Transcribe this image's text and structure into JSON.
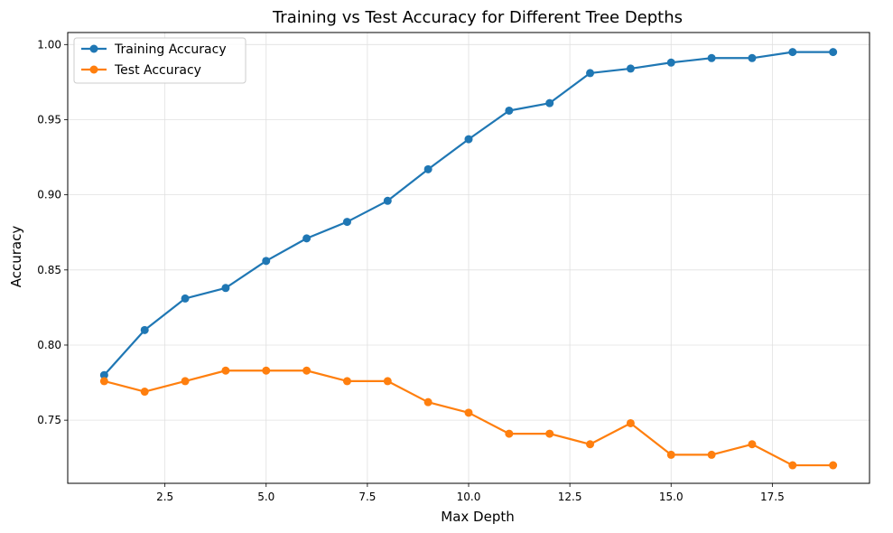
{
  "chart_data": {
    "type": "line",
    "title": "Training vs Test Accuracy for Different Tree Depths",
    "xlabel": "Max Depth",
    "ylabel": "Accuracy",
    "x": [
      1,
      2,
      3,
      4,
      5,
      6,
      7,
      8,
      9,
      10,
      11,
      12,
      13,
      14,
      15,
      16,
      17,
      18,
      19
    ],
    "xlim": [
      0.1,
      19.9
    ],
    "ylim": [
      0.708,
      1.008
    ],
    "xticks": [
      2.5,
      5.0,
      7.5,
      10.0,
      12.5,
      15.0,
      17.5
    ],
    "xtick_labels": [
      "2.5",
      "5.0",
      "7.5",
      "10.0",
      "12.5",
      "15.0",
      "17.5"
    ],
    "yticks": [
      0.75,
      0.8,
      0.85,
      0.9,
      0.95,
      1.0
    ],
    "ytick_labels": [
      "0.75",
      "0.80",
      "0.85",
      "0.90",
      "0.95",
      "1.00"
    ],
    "grid": true,
    "legend_position": "top-left",
    "series": [
      {
        "name": "Training Accuracy",
        "color": "#1f77b4",
        "values": [
          0.78,
          0.81,
          0.831,
          0.838,
          0.856,
          0.871,
          0.882,
          0.896,
          0.917,
          0.937,
          0.956,
          0.961,
          0.981,
          0.984,
          0.988,
          0.991,
          0.991,
          0.995,
          0.995
        ]
      },
      {
        "name": "Test Accuracy",
        "color": "#ff7f0e",
        "values": [
          0.776,
          0.769,
          0.776,
          0.783,
          0.783,
          0.783,
          0.776,
          0.776,
          0.762,
          0.755,
          0.741,
          0.741,
          0.734,
          0.748,
          0.727,
          0.727,
          0.734,
          0.72,
          0.72
        ]
      }
    ]
  }
}
